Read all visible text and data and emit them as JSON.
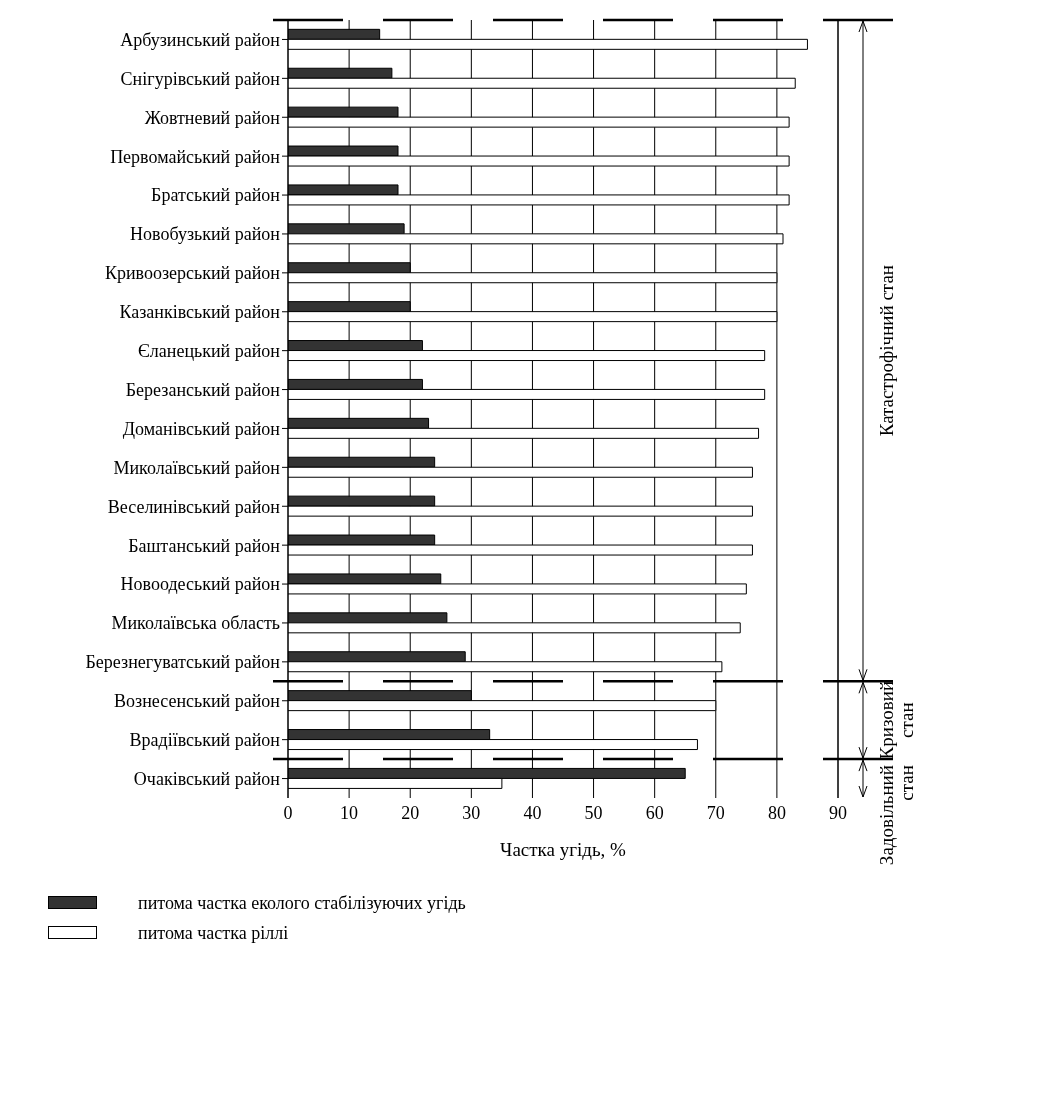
{
  "chart_data": {
    "type": "bar",
    "orientation": "horizontal",
    "xlabel": "Частка угідь, %",
    "categories": [
      "Арбузинський район",
      "Снігурівський район",
      "Жовтневий район",
      "Первомайський район",
      "Братський район",
      "Новобузький район",
      "Кривоозерський район",
      "Казанківський район",
      "Єланецький район",
      "Березанський район",
      "Доманівський район",
      "Миколаївський район",
      "Веселинівський район",
      "Баштанський район",
      "Новоодеський район",
      "Миколаївська область",
      "Березнегуватський район",
      "Вознесенський район",
      "Врадіївський район",
      "Очаківський район"
    ],
    "series": [
      {
        "name": "питома частка еколого стабілізуючих угідь",
        "color": "#333333",
        "values": [
          15,
          17,
          18,
          18,
          18,
          19,
          20,
          20,
          22,
          22,
          23,
          24,
          24,
          24,
          25,
          26,
          29,
          30,
          33,
          65
        ]
      },
      {
        "name": "питома частка ріллі",
        "color": "#ffffff",
        "values": [
          85,
          83,
          82,
          82,
          82,
          81,
          80,
          80,
          78,
          78,
          77,
          76,
          76,
          76,
          75,
          74,
          71,
          70,
          67,
          35
        ]
      }
    ],
    "xlim": [
      0,
      90
    ],
    "xticks": [
      0,
      10,
      20,
      30,
      40,
      50,
      60,
      70,
      80,
      90
    ],
    "grid": "x",
    "legend": "bottom",
    "annotations": [
      "Катастрофічний стан",
      "Кризовий стан",
      "Задовільний стан"
    ]
  }
}
